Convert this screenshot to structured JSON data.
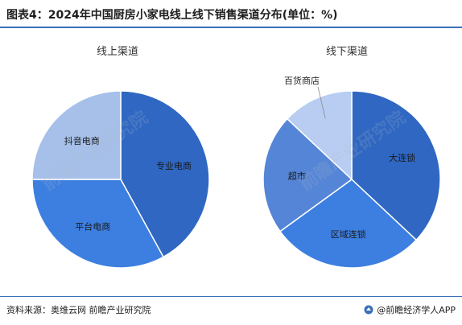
{
  "title": "图表4：2024年中国厨房小家电线上线下销售渠道分布(单位：%)",
  "source": "资料来源：奥维云网 前瞻产业研究院",
  "brand": "@前瞻经济学人APP",
  "watermark": "前瞻产业研究院",
  "colors": {
    "rule": "#3a6fb7",
    "dark_blue": "#2f67c2",
    "mid_blue": "#3d7fe0",
    "light_blue": "#a6c0ea",
    "lighter_blue": "#b8cdf1",
    "slice_blue": "#5585d6"
  },
  "chart_data": [
    {
      "type": "pie",
      "title": "线上渠道",
      "slices": [
        {
          "label": "专业电商",
          "value": 42,
          "color": "#2f67c2"
        },
        {
          "label": "平台电商",
          "value": 33,
          "color": "#3d7fe0"
        },
        {
          "label": "抖音电商",
          "value": 25,
          "color": "#a6c0ea"
        }
      ]
    },
    {
      "type": "pie",
      "title": "线下渠道",
      "slices": [
        {
          "label": "大连锁",
          "value": 37,
          "color": "#2f67c2"
        },
        {
          "label": "区域连锁",
          "value": 28,
          "color": "#3d7fe0"
        },
        {
          "label": "超市",
          "value": 22,
          "color": "#5585d6"
        },
        {
          "label": "百货商店",
          "value": 13,
          "color": "#b8cdf1"
        }
      ]
    }
  ]
}
